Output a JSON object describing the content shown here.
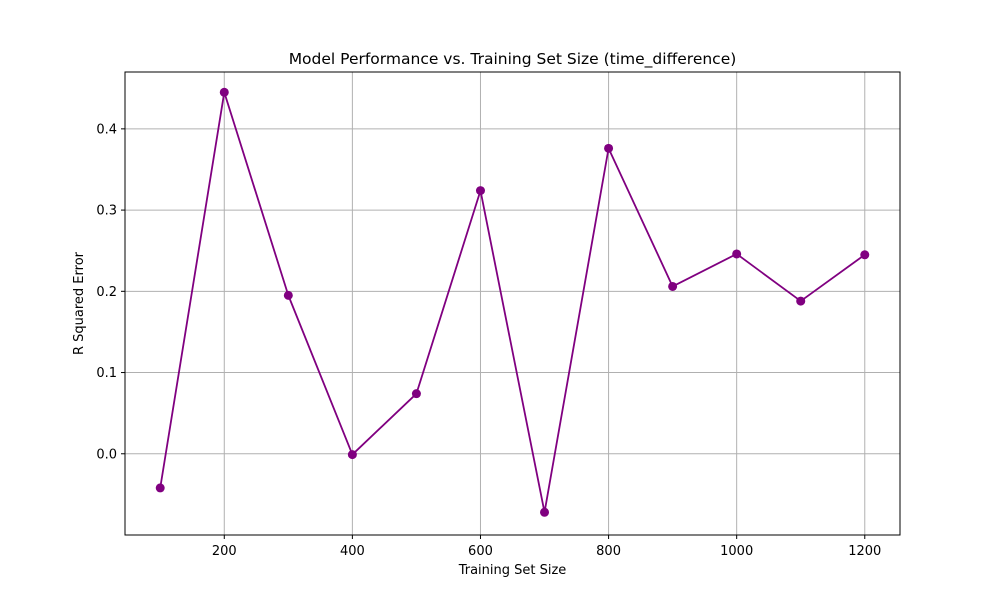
{
  "chart_data": {
    "type": "line",
    "title": "Model Performance vs. Training Set Size (time_difference)",
    "xlabel": "Training Set Size",
    "ylabel": "R Squared Error",
    "x": [
      100,
      200,
      300,
      400,
      500,
      600,
      700,
      800,
      900,
      1000,
      1100,
      1200
    ],
    "series": [
      {
        "values": [
          -0.042,
          0.445,
          0.195,
          -0.001,
          0.074,
          0.324,
          -0.072,
          0.376,
          0.206,
          0.246,
          0.188,
          0.245
        ],
        "color": "#800080",
        "marker": "circle"
      }
    ],
    "xlim": [
      45,
      1255
    ],
    "ylim": [
      -0.1,
      0.47
    ],
    "xticks": [
      200,
      400,
      600,
      800,
      1000,
      1200
    ],
    "xtick_labels": [
      "200",
      "400",
      "600",
      "800",
      "1000",
      "1200"
    ],
    "yticks": [
      0.0,
      0.1,
      0.2,
      0.3,
      0.4
    ],
    "ytick_labels": [
      "0.0",
      "0.1",
      "0.2",
      "0.3",
      "0.4"
    ],
    "grid": true
  }
}
